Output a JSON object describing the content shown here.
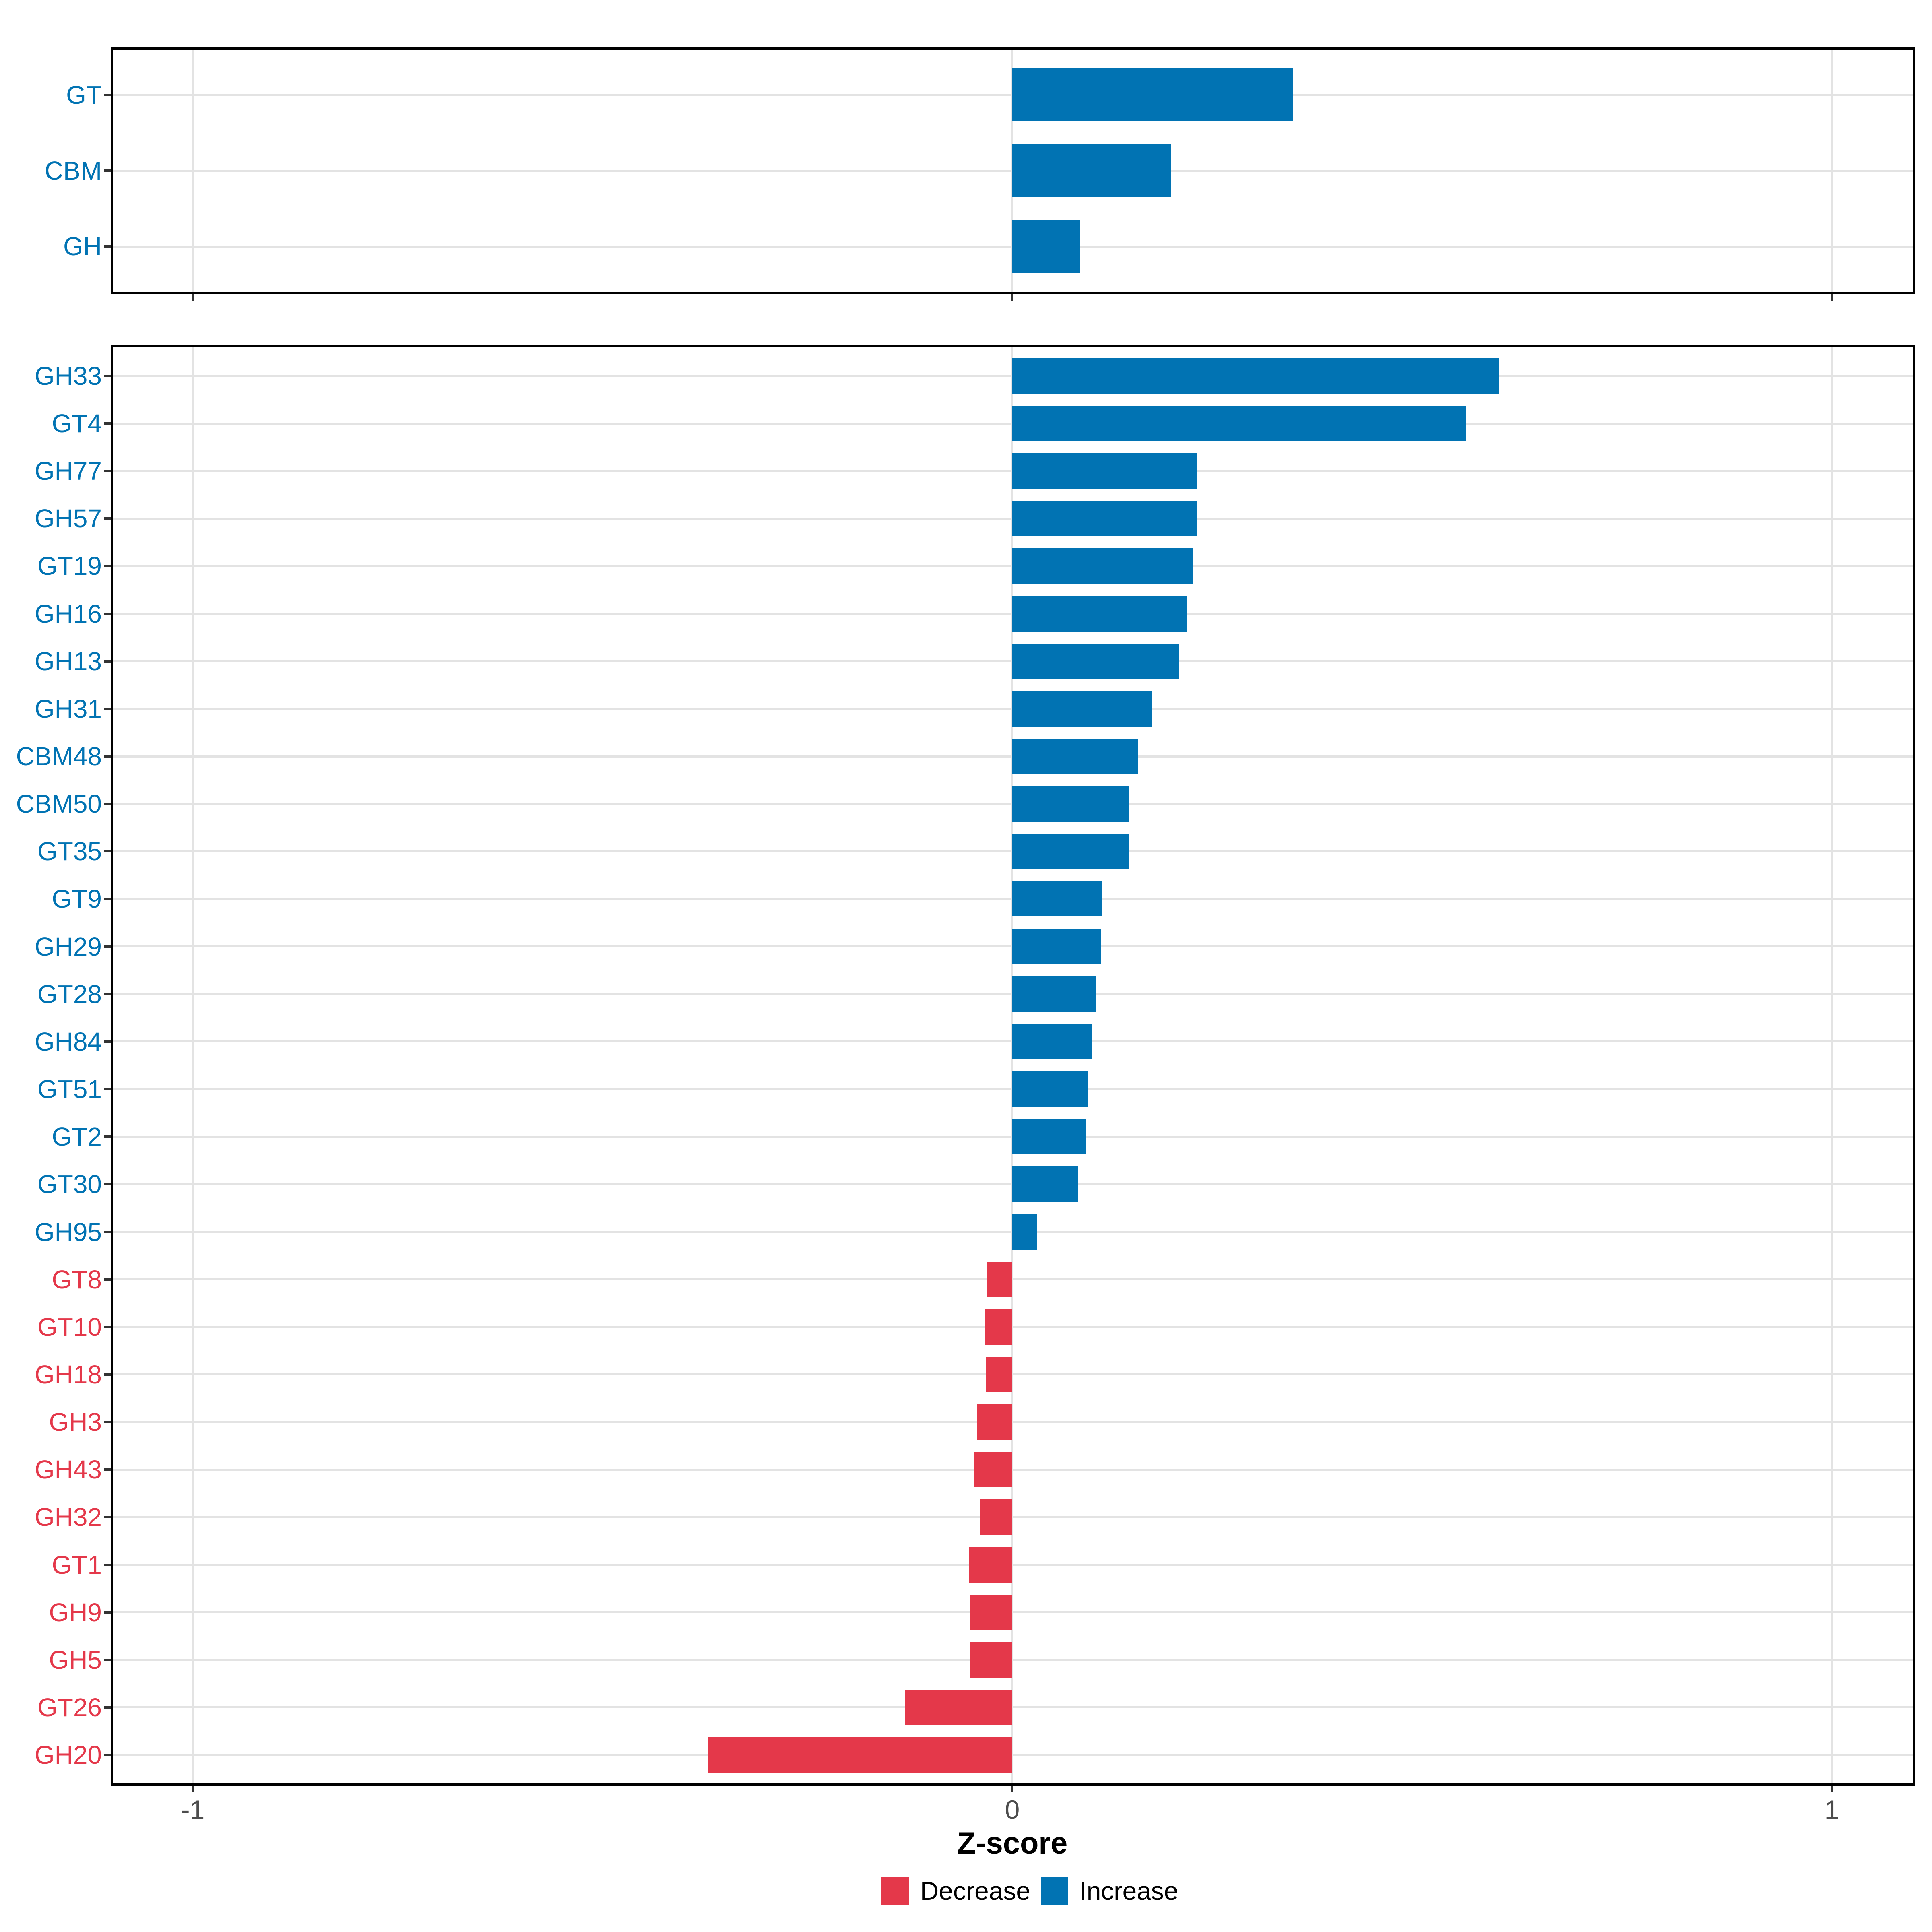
{
  "figure": {
    "x_axis": {
      "label": "Z-score",
      "tick_labels": [
        "-1",
        "0",
        "1"
      ],
      "tick_values": [
        -1,
        0,
        1
      ],
      "range": [
        -1.1,
        1.1
      ]
    },
    "legend": {
      "items": [
        {
          "label": "Decrease",
          "color": "#E4384A"
        },
        {
          "label": "Increase",
          "color": "#0173B3"
        }
      ]
    },
    "colors": {
      "increase": "#0173B3",
      "decrease": "#E4384A",
      "grid": "#E3E3E3",
      "tick_label": "#4D4D4D",
      "border": "#000000",
      "background": "#FFFFFF"
    }
  },
  "chart_data": [
    {
      "type": "bar",
      "orientation": "horizontal",
      "panel": "top",
      "title": "",
      "xlabel": "Z-score",
      "ylabel": "",
      "xlim": [
        -1.1,
        1.1
      ],
      "grid_x": [
        -1,
        0,
        1
      ],
      "legend_position": "bottom",
      "categories": [
        "GT",
        "CBM",
        "GH"
      ],
      "values": [
        0.343,
        0.194,
        0.083
      ],
      "directions": [
        "Increase",
        "Increase",
        "Increase"
      ]
    },
    {
      "type": "bar",
      "orientation": "horizontal",
      "panel": "bottom",
      "title": "",
      "xlabel": "Z-score",
      "ylabel": "",
      "xlim": [
        -1.1,
        1.1
      ],
      "grid_x": [
        -1,
        0,
        1
      ],
      "legend_position": "bottom",
      "categories": [
        "GH33",
        "GT4",
        "GH77",
        "GH57",
        "GT19",
        "GH16",
        "GH13",
        "GH31",
        "CBM48",
        "CBM50",
        "GT35",
        "GT9",
        "GH29",
        "GT28",
        "GH84",
        "GT51",
        "GT2",
        "GT30",
        "GH95",
        "GT8",
        "GT10",
        "GH18",
        "GH3",
        "GH43",
        "GH32",
        "GT1",
        "GH9",
        "GH5",
        "GT26",
        "GH20"
      ],
      "values": [
        0.594,
        0.554,
        0.226,
        0.225,
        0.22,
        0.213,
        0.204,
        0.17,
        0.153,
        0.143,
        0.142,
        0.11,
        0.108,
        0.102,
        0.097,
        0.093,
        0.09,
        0.08,
        0.03,
        -0.031,
        -0.033,
        -0.032,
        -0.043,
        -0.046,
        -0.04,
        -0.053,
        -0.052,
        -0.051,
        -0.131,
        -0.371
      ],
      "directions": [
        "Increase",
        "Increase",
        "Increase",
        "Increase",
        "Increase",
        "Increase",
        "Increase",
        "Increase",
        "Increase",
        "Increase",
        "Increase",
        "Increase",
        "Increase",
        "Increase",
        "Increase",
        "Increase",
        "Increase",
        "Increase",
        "Increase",
        "Decrease",
        "Decrease",
        "Decrease",
        "Decrease",
        "Decrease",
        "Decrease",
        "Decrease",
        "Decrease",
        "Decrease",
        "Decrease",
        "Decrease"
      ]
    }
  ]
}
